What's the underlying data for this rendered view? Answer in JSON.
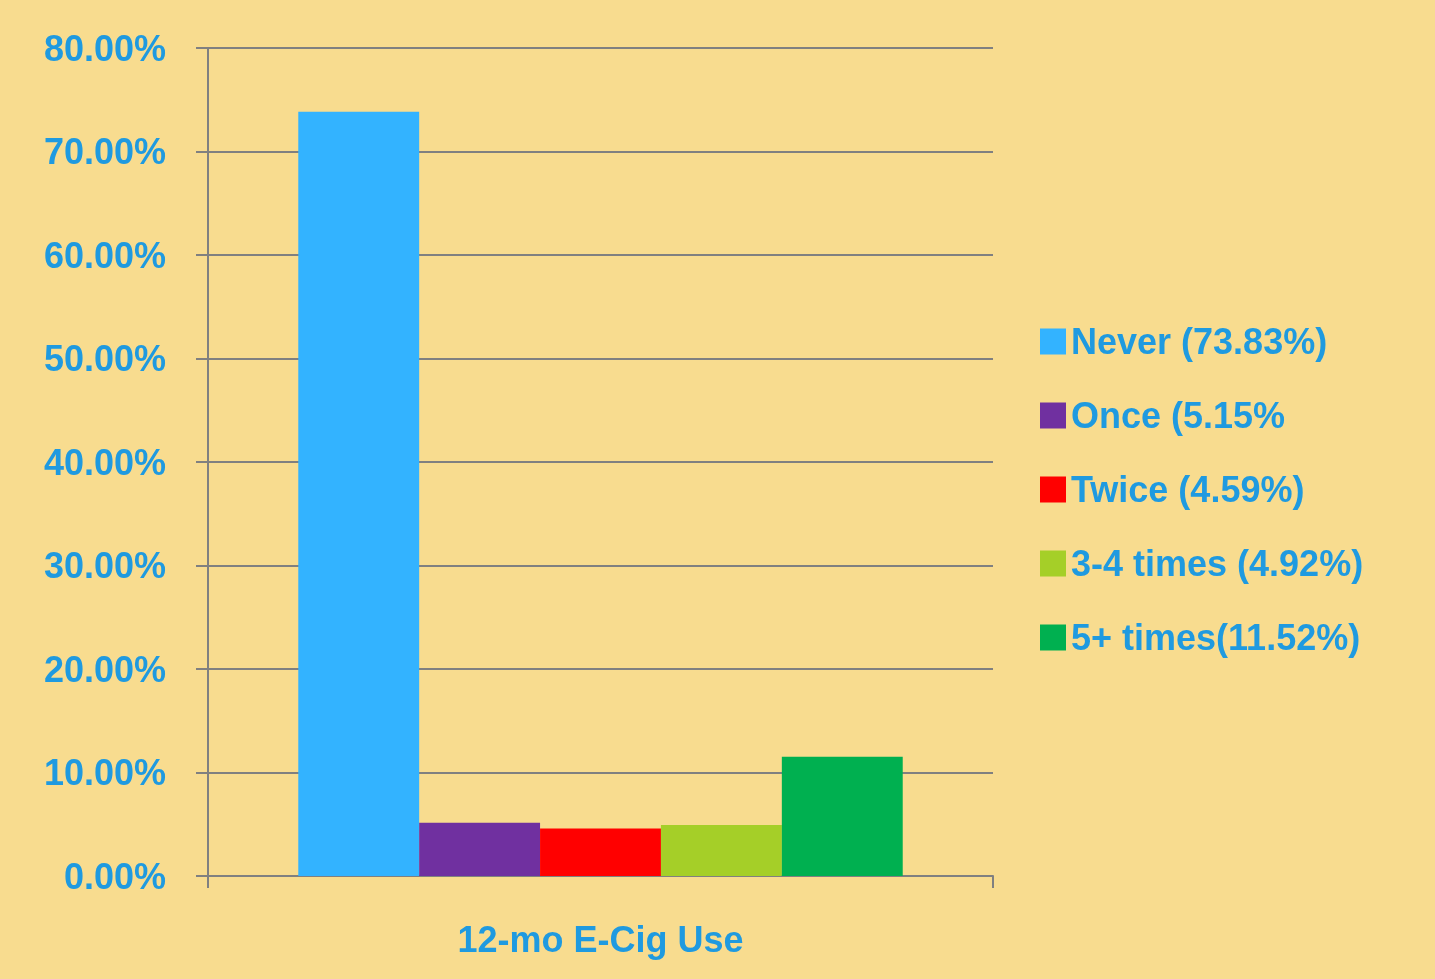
{
  "chart_data": {
    "type": "bar",
    "xlabel": "12-mo E-Cig Use",
    "categories": [
      null
    ],
    "series": [
      {
        "name": "Never (73.83%)",
        "color": "#33b3ff",
        "values": [
          73.83
        ]
      },
      {
        "name": "Once (5.15%",
        "color": "#7030a0",
        "values": [
          5.15
        ]
      },
      {
        "name": "Twice (4.59%)",
        "color": "#ff0000",
        "values": [
          4.59
        ]
      },
      {
        "name": "3-4 times (4.92%)",
        "color": "#a5cf28",
        "values": [
          4.92
        ]
      },
      {
        "name": "5+ times(11.52%)",
        "color": "#00b050",
        "values": [
          11.52
        ]
      }
    ],
    "ylim": [
      0,
      80
    ],
    "yticks": [
      {
        "value": 0,
        "label": "0.00%"
      },
      {
        "value": 10,
        "label": "10.00%"
      },
      {
        "value": 20,
        "label": "20.00%"
      },
      {
        "value": 30,
        "label": "30.00%"
      },
      {
        "value": 40,
        "label": "40.00%"
      },
      {
        "value": 50,
        "label": "50.00%"
      },
      {
        "value": 60,
        "label": "60.00%"
      },
      {
        "value": 70,
        "label": "70.00%"
      },
      {
        "value": 80,
        "label": "80.00%"
      }
    ],
    "grid": "y",
    "legend": "right"
  }
}
